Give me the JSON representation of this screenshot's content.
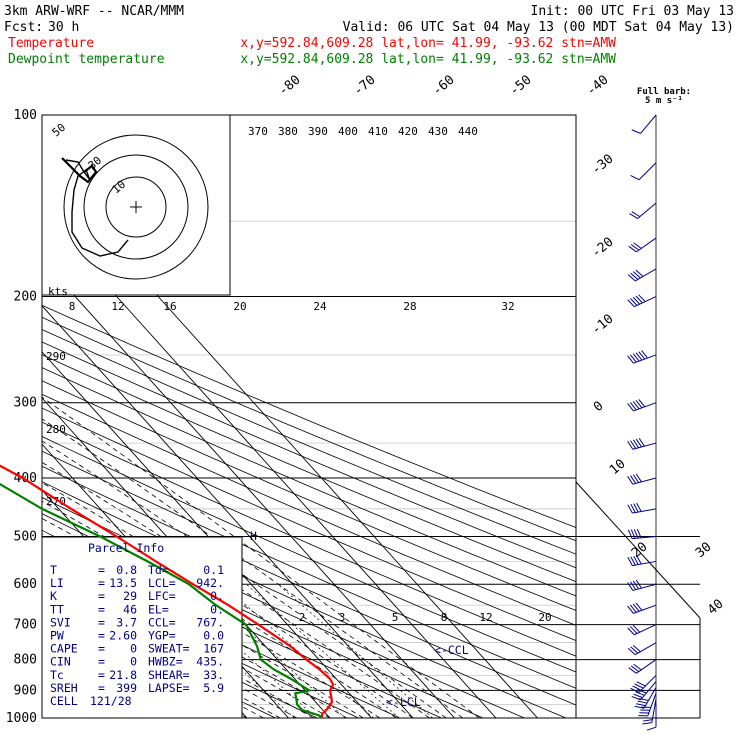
{
  "header": {
    "model": "3km ARW-WRF -- NCAR/MMM",
    "init": "Init: 00 UTC Fri 03 May 13",
    "fcst_label": "Fcst:",
    "fcst_value": "30 h",
    "valid": "Valid: 06 UTC Sat 04 May 13 (00 MDT Sat 04 May 13)",
    "temp_name": "Temperature",
    "temp_info": "x,y=592.84,609.28   lat,lon= 41.99, -93.62  stn=AMW",
    "dew_name": "Dewpoint temperature",
    "dew_info": "x,y=592.84,609.28   lat,lon= 41.99, -93.62  stn=AMW"
  },
  "colors": {
    "temperature": "#ff0000",
    "dewpoint": "#008000",
    "parcel": "#00008b",
    "wind": "#00008b"
  },
  "barb_legend": {
    "line1": "Full barb:",
    "line2": "5 m s⁻¹"
  },
  "hodograph": {
    "units_label": "kts",
    "ring_labels": [
      "50",
      "30",
      "10"
    ]
  },
  "parcel_info": {
    "title": "Parcel Info",
    "rows": [
      {
        "k1": "T",
        "v1": "0.8",
        "k2": "Td",
        "v2": "0.1"
      },
      {
        "k1": "LI",
        "v1": "13.5",
        "k2": "LCL",
        "v2": "942."
      },
      {
        "k1": "K",
        "v1": "29",
        "k2": "LFC",
        "v2": "0."
      },
      {
        "k1": "TT",
        "v1": "46",
        "k2": "EL",
        "v2": "0."
      },
      {
        "k1": "SVI",
        "v1": "3.7",
        "k2": "CCL",
        "v2": "767."
      },
      {
        "k1": "PW",
        "v1": "2.60",
        "k2": "YGP",
        "v2": "0.0"
      },
      {
        "k1": "CAPE",
        "v1": "0",
        "k2": "SWEAT",
        "v2": "167"
      },
      {
        "k1": "CIN",
        "v1": "0",
        "k2": "HWBZ",
        "v2": "435."
      },
      {
        "k1": "Tc",
        "v1": "21.8",
        "k2": "SHEAR",
        "v2": "33."
      },
      {
        "k1": "SREH",
        "v1": "399",
        "k2": "LAPSE",
        "v2": "5.9"
      },
      {
        "k1": "CELL",
        "v1": "121/28",
        "k2": "",
        "v2": ""
      }
    ]
  },
  "markers": {
    "ccl": "<-CCL",
    "lcl": "<-LCL"
  },
  "chart_data": {
    "type": "line",
    "pressure_ticks": [
      100,
      200,
      300,
      400,
      500,
      600,
      700,
      800,
      900,
      1000
    ],
    "isotherm_labels": [
      "-80",
      "-70",
      "-60",
      "-50",
      "-40",
      "-30",
      "-20",
      "-10",
      "0",
      "10",
      "20",
      "30",
      "40"
    ],
    "theta_labels_top": [
      "370",
      "380",
      "390",
      "400",
      "410",
      "420",
      "430",
      "440"
    ],
    "theta_labels_left": [
      "290",
      "280",
      "270"
    ],
    "mixing_ratio_labels_mid": [
      "8",
      "12",
      "16",
      "20",
      "24",
      "28",
      "32"
    ],
    "mixing_ratio_labels_low": [
      "2",
      "3",
      "5",
      "8",
      "12",
      "20"
    ],
    "series": [
      {
        "name": "Temperature",
        "points": [
          [
            1000,
            -2
          ],
          [
            985,
            -1
          ],
          [
            960,
            2
          ],
          [
            940,
            4
          ],
          [
            920,
            5
          ],
          [
            900,
            6
          ],
          [
            880,
            8
          ],
          [
            860,
            8.5
          ],
          [
            830,
            8
          ],
          [
            800,
            7
          ],
          [
            760,
            6
          ],
          [
            700,
            3
          ],
          [
            650,
            0
          ],
          [
            600,
            -4
          ],
          [
            550,
            -8
          ],
          [
            500,
            -12
          ],
          [
            450,
            -17
          ],
          [
            400,
            -22
          ],
          [
            350,
            -30
          ],
          [
            300,
            -38
          ],
          [
            260,
            -47
          ],
          [
            230,
            -53
          ],
          [
            210,
            -55
          ],
          [
            200,
            -55
          ],
          [
            180,
            -55
          ],
          [
            160,
            -54
          ],
          [
            140,
            -52
          ],
          [
            120,
            -50
          ],
          [
            100,
            -47
          ]
        ]
      },
      {
        "name": "Dewpoint temperature",
        "points": [
          [
            1000,
            -2
          ],
          [
            990,
            -2
          ],
          [
            970,
            -5
          ],
          [
            950,
            -5
          ],
          [
            930,
            -4
          ],
          [
            910,
            -3
          ],
          [
            900,
            1
          ],
          [
            880,
            0
          ],
          [
            860,
            -1
          ],
          [
            830,
            -3
          ],
          [
            800,
            -4
          ],
          [
            760,
            -2
          ],
          [
            700,
            0
          ],
          [
            650,
            -3
          ],
          [
            600,
            -5
          ],
          [
            550,
            -10
          ],
          [
            500,
            -16
          ],
          [
            450,
            -24
          ],
          [
            400,
            -30
          ],
          [
            350,
            -37
          ],
          [
            300,
            -47
          ],
          [
            260,
            -55
          ],
          [
            230,
            -63
          ],
          [
            200,
            -75
          ],
          [
            180,
            -77
          ],
          [
            160,
            -75
          ],
          [
            140,
            -71
          ],
          [
            120,
            -67
          ],
          [
            100,
            -62
          ]
        ]
      }
    ],
    "winds": [
      {
        "p": 945,
        "dir": 180,
        "spd": 6
      },
      {
        "p": 930,
        "dir": 190,
        "spd": 14
      },
      {
        "p": 910,
        "dir": 200,
        "spd": 20
      },
      {
        "p": 890,
        "dir": 210,
        "spd": 24
      },
      {
        "p": 870,
        "dir": 220,
        "spd": 24
      },
      {
        "p": 850,
        "dir": 225,
        "spd": 22
      },
      {
        "p": 800,
        "dir": 235,
        "spd": 18
      },
      {
        "p": 750,
        "dir": 240,
        "spd": 18
      },
      {
        "p": 700,
        "dir": 245,
        "spd": 18
      },
      {
        "p": 650,
        "dir": 250,
        "spd": 20
      },
      {
        "p": 600,
        "dir": 255,
        "spd": 20
      },
      {
        "p": 550,
        "dir": 260,
        "spd": 22
      },
      {
        "p": 500,
        "dir": 265,
        "spd": 22
      },
      {
        "p": 450,
        "dir": 260,
        "spd": 24
      },
      {
        "p": 400,
        "dir": 255,
        "spd": 24
      },
      {
        "p": 350,
        "dir": 255,
        "spd": 26
      },
      {
        "p": 300,
        "dir": 250,
        "spd": 28
      },
      {
        "p": 250,
        "dir": 250,
        "spd": 30
      },
      {
        "p": 200,
        "dir": 245,
        "spd": 28
      },
      {
        "p": 180,
        "dir": 240,
        "spd": 24
      },
      {
        "p": 160,
        "dir": 235,
        "spd": 18
      },
      {
        "p": 140,
        "dir": 230,
        "spd": 12
      },
      {
        "p": 120,
        "dir": 225,
        "spd": 8
      },
      {
        "p": 100,
        "dir": 220,
        "spd": 6
      }
    ]
  }
}
